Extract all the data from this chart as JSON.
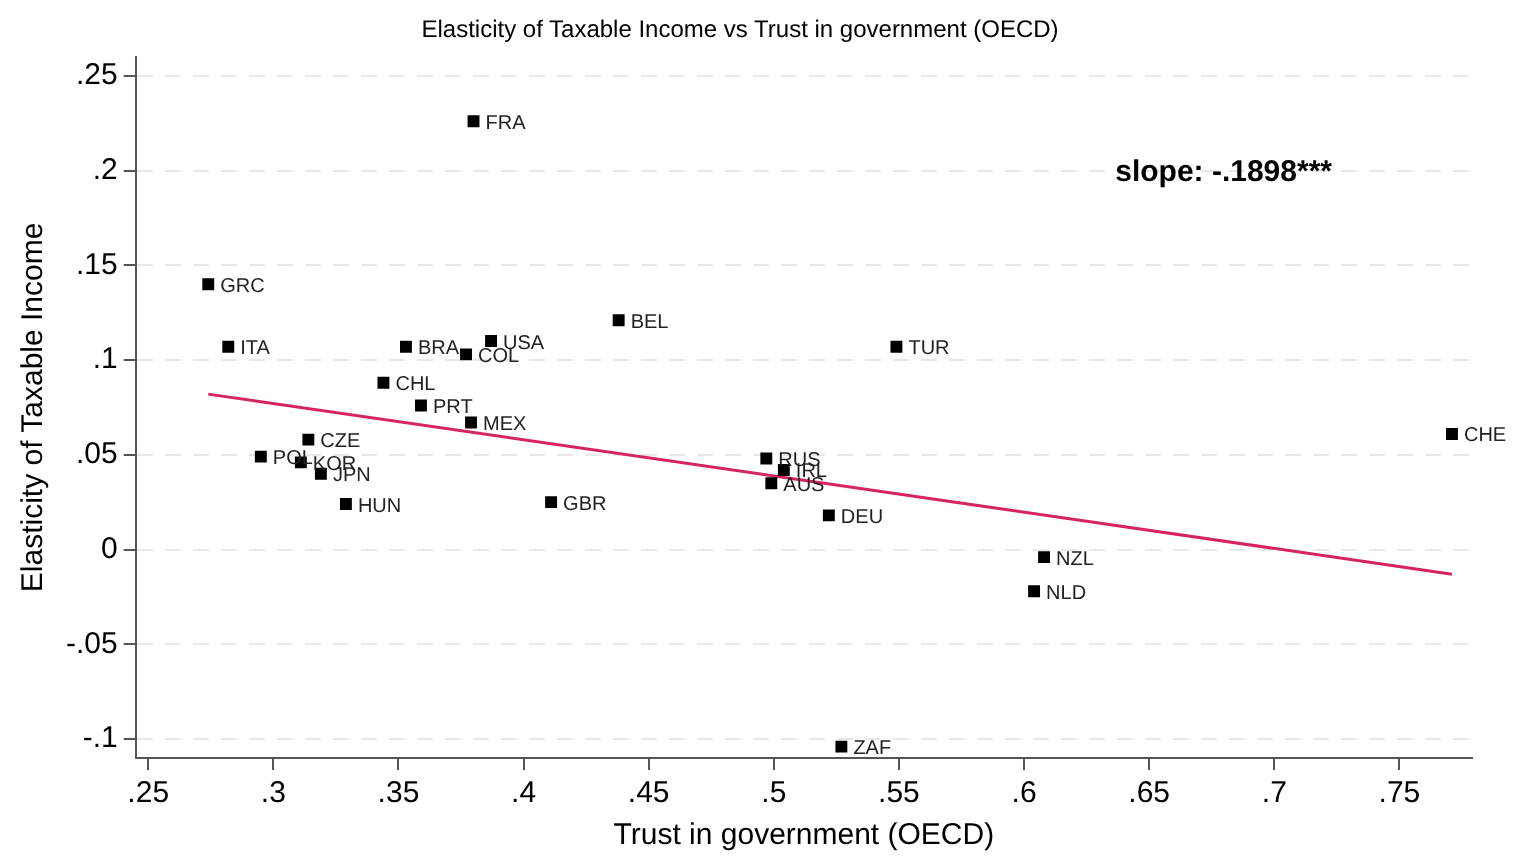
{
  "chart_data": {
    "type": "scatter",
    "title": "Elasticity of Taxable Income vs Trust in government (OECD)",
    "xlabel": "Trust in government (OECD)",
    "ylabel": "Elasticity of Taxable Income",
    "grid": "y",
    "legend": false,
    "marker": "square",
    "xlim": [
      0.245,
      0.779
    ],
    "ylim": [
      -0.11,
      0.26
    ],
    "xticks": [
      {
        "value": 0.25,
        "label": ".25"
      },
      {
        "value": 0.3,
        "label": ".3"
      },
      {
        "value": 0.35,
        "label": ".35"
      },
      {
        "value": 0.4,
        "label": ".4"
      },
      {
        "value": 0.45,
        "label": ".45"
      },
      {
        "value": 0.5,
        "label": ".5"
      },
      {
        "value": 0.55,
        "label": ".55"
      },
      {
        "value": 0.6,
        "label": ".6"
      },
      {
        "value": 0.65,
        "label": ".65"
      },
      {
        "value": 0.7,
        "label": ".7"
      },
      {
        "value": 0.75,
        "label": ".75"
      }
    ],
    "yticks": [
      {
        "value": -0.1,
        "label": "-.1"
      },
      {
        "value": -0.05,
        "label": "-.05"
      },
      0,
      {
        "value": 0.05,
        "label": ".05"
      },
      {
        "value": 0.1,
        "label": ".1"
      },
      {
        "value": 0.15,
        "label": ".15"
      },
      {
        "value": 0.2,
        "label": ".2"
      },
      {
        "value": 0.25,
        "label": ".25"
      }
    ],
    "series": [
      {
        "type": "scatter",
        "color": "#000000",
        "x": [
          0.38,
          0.274,
          0.282,
          0.353,
          0.377,
          0.387,
          0.438,
          0.344,
          0.359,
          0.379,
          0.314,
          0.295,
          0.311,
          0.319,
          0.329,
          0.411,
          0.497,
          0.504,
          0.499,
          0.522,
          0.549,
          0.771,
          0.608,
          0.604,
          0.527
        ],
        "values": [
          0.226,
          0.14,
          0.107,
          0.107,
          0.103,
          0.11,
          0.121,
          0.088,
          0.076,
          0.067,
          0.058,
          0.049,
          0.046,
          0.04,
          0.024,
          0.025,
          0.048,
          0.042,
          0.035,
          0.018,
          0.107,
          0.061,
          -0.004,
          -0.022,
          -0.104
        ]
      },
      {
        "type": "line",
        "color": "#d6245c",
        "marker": "none",
        "line_style": "solid",
        "x": [
          0.274,
          0.771
        ],
        "values": [
          0.082,
          -0.013
        ]
      }
    ],
    "annotations": [
      {
        "text": "FRA",
        "x": 0.38,
        "y": 0.226
      },
      {
        "text": "GRC",
        "x": 0.274,
        "y": 0.14
      },
      {
        "text": "ITA",
        "x": 0.282,
        "y": 0.107
      },
      {
        "text": "BRA",
        "x": 0.353,
        "y": 0.107
      },
      {
        "text": "COL",
        "x": 0.377,
        "y": 0.103
      },
      {
        "text": "USA",
        "x": 0.387,
        "y": 0.11
      },
      {
        "text": "BEL",
        "x": 0.438,
        "y": 0.121
      },
      {
        "text": "CHL",
        "x": 0.344,
        "y": 0.088
      },
      {
        "text": "PRT",
        "x": 0.359,
        "y": 0.076
      },
      {
        "text": "MEX",
        "x": 0.379,
        "y": 0.067
      },
      {
        "text": "CZE",
        "x": 0.314,
        "y": 0.058
      },
      {
        "text": "POL",
        "x": 0.295,
        "y": 0.049
      },
      {
        "text": "KOR",
        "x": 0.311,
        "y": 0.046
      },
      {
        "text": "JPN",
        "x": 0.319,
        "y": 0.04
      },
      {
        "text": "HUN",
        "x": 0.329,
        "y": 0.024
      },
      {
        "text": "GBR",
        "x": 0.411,
        "y": 0.025
      },
      {
        "text": "RUS",
        "x": 0.497,
        "y": 0.048
      },
      {
        "text": "IRL",
        "x": 0.504,
        "y": 0.042
      },
      {
        "text": "AUS",
        "x": 0.499,
        "y": 0.035
      },
      {
        "text": "DEU",
        "x": 0.522,
        "y": 0.018
      },
      {
        "text": "TUR",
        "x": 0.549,
        "y": 0.107
      },
      {
        "text": "CHE",
        "x": 0.771,
        "y": 0.061
      },
      {
        "text": "NZL",
        "x": 0.608,
        "y": -0.004
      },
      {
        "text": "NLD",
        "x": 0.604,
        "y": -0.022
      },
      {
        "text": "ZAF",
        "x": 0.527,
        "y": -0.104
      },
      "slope: -.1898***"
    ]
  }
}
